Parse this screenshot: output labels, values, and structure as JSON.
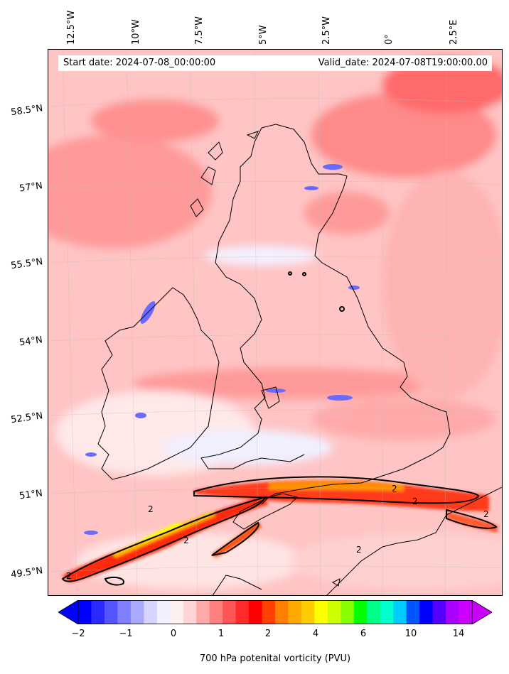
{
  "header": {
    "start_text": "Start date: 2024-07-08_00:00:00",
    "valid_text": "Valid_date: 2024-07-08T19:00:00.00"
  },
  "axes": {
    "lon_labels": [
      "12.5°W",
      "10°W",
      "7.5°W",
      "5°W",
      "2.5°W",
      "0°",
      "2.5°E"
    ],
    "lat_labels": [
      "58.5°N",
      "57°N",
      "55.5°N",
      "54°N",
      "52.5°N",
      "51°N",
      "49.5°N"
    ]
  },
  "contour_labels": [
    "2",
    "2",
    "2",
    "2",
    "2",
    "2",
    "2"
  ],
  "colorbar": {
    "title": "700 hPa potenital vorticity (PVU)",
    "tick_labels": [
      "−2",
      "−1",
      "0",
      "1",
      "2",
      "4",
      "6",
      "10",
      "14"
    ],
    "colors": [
      "#0000ff",
      "#2a2aff",
      "#5555ff",
      "#7f7fff",
      "#a9a9ff",
      "#d4d4ff",
      "#f0f0ff",
      "#fff0f0",
      "#ffd4d4",
      "#ffa9a9",
      "#ff7f7f",
      "#ff5555",
      "#ff2a2a",
      "#ff0000",
      "#ff4000",
      "#ff8000",
      "#ffaa00",
      "#ffcc00",
      "#ffff00",
      "#ccff00",
      "#88ff00",
      "#00ff00",
      "#00ff88",
      "#00ffcc",
      "#00ccff",
      "#0055ff",
      "#0000ff",
      "#5500ff",
      "#aa00ff",
      "#cc00ff"
    ]
  }
}
